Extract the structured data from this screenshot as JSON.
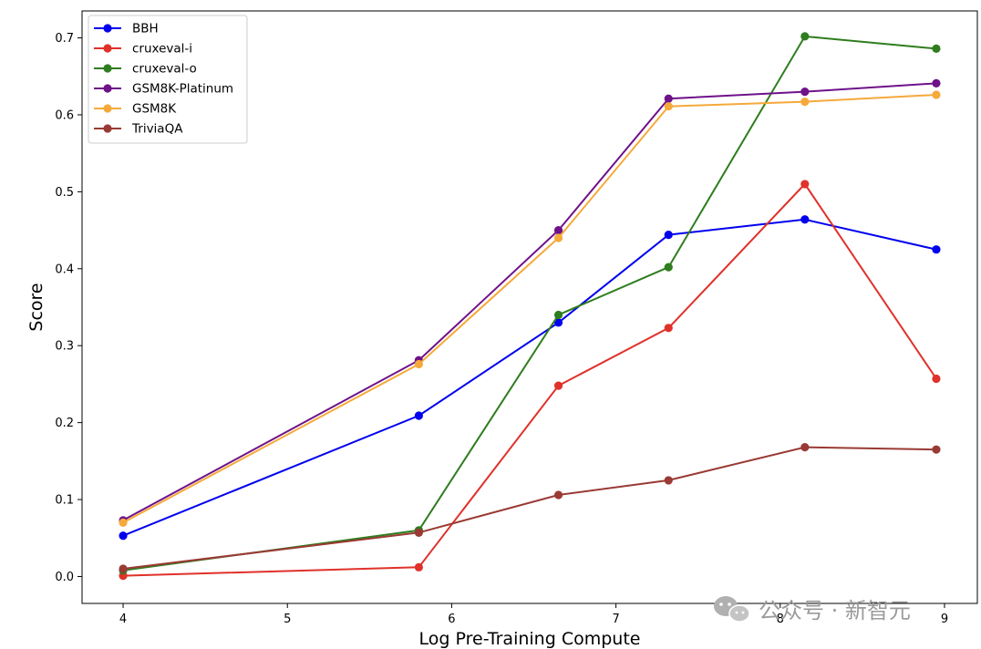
{
  "chart_data": {
    "type": "line",
    "title": "",
    "xlabel": "Log Pre-Training Compute",
    "ylabel": "Score",
    "xlim": [
      3.75,
      9.2
    ],
    "ylim": [
      -0.035,
      0.735
    ],
    "xticks": [
      4,
      5,
      6,
      7,
      8,
      9
    ],
    "yticks": [
      0.0,
      0.1,
      0.2,
      0.3,
      0.4,
      0.5,
      0.6,
      0.7
    ],
    "x": [
      4.0,
      5.8,
      6.65,
      7.32,
      8.15,
      8.95
    ],
    "grid": false,
    "legend_position": "top-left",
    "series": [
      {
        "name": "BBH",
        "color": "#0000ee",
        "values": [
          0.053,
          0.209,
          0.33,
          0.444,
          0.464,
          0.425
        ]
      },
      {
        "name": "cruxeval-i",
        "color": "#e0312a",
        "values": [
          0.001,
          0.012,
          0.248,
          0.323,
          0.51,
          0.257
        ]
      },
      {
        "name": "cruxeval-o",
        "color": "#2e7d1e",
        "values": [
          0.008,
          0.06,
          0.34,
          0.402,
          0.702,
          0.686
        ]
      },
      {
        "name": "GSM8K-Platinum",
        "color": "#6e1289",
        "values": [
          0.073,
          0.281,
          0.45,
          0.621,
          0.63,
          0.641
        ]
      },
      {
        "name": "GSM8K",
        "color": "#f5a93b",
        "values": [
          0.07,
          0.276,
          0.44,
          0.611,
          0.617,
          0.626
        ]
      },
      {
        "name": "TriviaQA",
        "color": "#9a3a34",
        "values": [
          0.01,
          0.057,
          0.106,
          0.125,
          0.168,
          0.165
        ]
      }
    ]
  },
  "watermark": {
    "text": "公众号 · 新智元",
    "icon": "wechat-icon"
  }
}
